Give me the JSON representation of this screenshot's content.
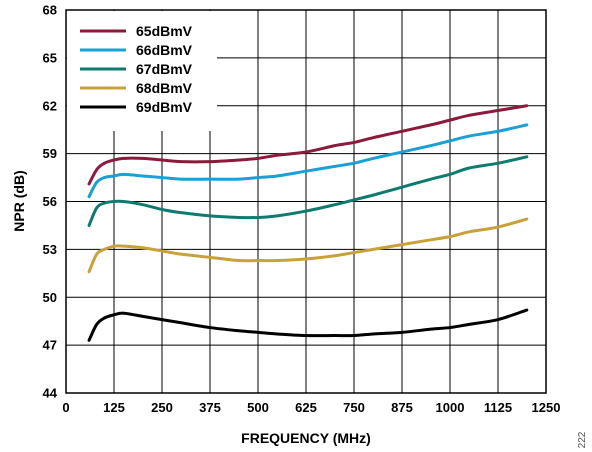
{
  "chart_data": {
    "type": "line",
    "title": "",
    "xlabel": "FREQUENCY (MHz)",
    "ylabel": "NPR (dB)",
    "xlim": [
      0,
      1250
    ],
    "ylim": [
      44,
      68
    ],
    "x_ticks": [
      0,
      125,
      250,
      375,
      500,
      625,
      750,
      875,
      1000,
      1125,
      1250
    ],
    "y_ticks": [
      44,
      47,
      50,
      53,
      56,
      59,
      62,
      65,
      68
    ],
    "grid": true,
    "legend_position": "top-left",
    "side_note": "222",
    "series": [
      {
        "name": "65dBmV",
        "color": "#8b1a3c",
        "x": [
          60,
          80,
          100,
          125,
          150,
          200,
          250,
          300,
          375,
          450,
          500,
          550,
          625,
          700,
          750,
          800,
          875,
          950,
          1000,
          1050,
          1125,
          1200
        ],
        "y": [
          57.1,
          58.0,
          58.4,
          58.6,
          58.7,
          58.7,
          58.6,
          58.5,
          58.5,
          58.6,
          58.7,
          58.9,
          59.1,
          59.5,
          59.7,
          60.0,
          60.4,
          60.8,
          61.1,
          61.4,
          61.7,
          62.0
        ]
      },
      {
        "name": "66dBmV",
        "color": "#1aa0d4",
        "x": [
          60,
          80,
          100,
          125,
          150,
          200,
          250,
          300,
          375,
          450,
          500,
          550,
          625,
          700,
          750,
          800,
          875,
          950,
          1000,
          1050,
          1125,
          1200
        ],
        "y": [
          56.3,
          57.2,
          57.5,
          57.6,
          57.7,
          57.6,
          57.5,
          57.4,
          57.4,
          57.4,
          57.5,
          57.6,
          57.9,
          58.2,
          58.4,
          58.7,
          59.1,
          59.5,
          59.8,
          60.1,
          60.4,
          60.8
        ]
      },
      {
        "name": "67dBmV",
        "color": "#0f7a6e",
        "x": [
          60,
          80,
          100,
          125,
          150,
          200,
          250,
          300,
          375,
          450,
          500,
          550,
          625,
          700,
          750,
          800,
          875,
          950,
          1000,
          1050,
          1125,
          1200
        ],
        "y": [
          54.5,
          55.6,
          55.9,
          56.0,
          56.0,
          55.8,
          55.5,
          55.3,
          55.1,
          55.0,
          55.0,
          55.1,
          55.4,
          55.8,
          56.1,
          56.4,
          56.9,
          57.4,
          57.7,
          58.1,
          58.4,
          58.8
        ]
      },
      {
        "name": "68dBmV",
        "color": "#c9a13a",
        "x": [
          60,
          80,
          100,
          125,
          150,
          200,
          250,
          300,
          375,
          450,
          500,
          550,
          625,
          700,
          750,
          800,
          875,
          950,
          1000,
          1050,
          1125,
          1200
        ],
        "y": [
          51.6,
          52.7,
          53.0,
          53.2,
          53.2,
          53.1,
          52.9,
          52.7,
          52.5,
          52.3,
          52.3,
          52.3,
          52.4,
          52.6,
          52.8,
          53.0,
          53.3,
          53.6,
          53.8,
          54.1,
          54.4,
          54.9
        ]
      },
      {
        "name": "69dBmV",
        "color": "#000000",
        "x": [
          60,
          80,
          100,
          125,
          150,
          200,
          250,
          300,
          375,
          450,
          500,
          550,
          625,
          700,
          750,
          800,
          875,
          950,
          1000,
          1050,
          1125,
          1200
        ],
        "y": [
          47.3,
          48.3,
          48.7,
          48.9,
          49.0,
          48.8,
          48.6,
          48.4,
          48.1,
          47.9,
          47.8,
          47.7,
          47.6,
          47.6,
          47.6,
          47.7,
          47.8,
          48.0,
          48.1,
          48.3,
          48.6,
          49.2
        ]
      }
    ]
  }
}
